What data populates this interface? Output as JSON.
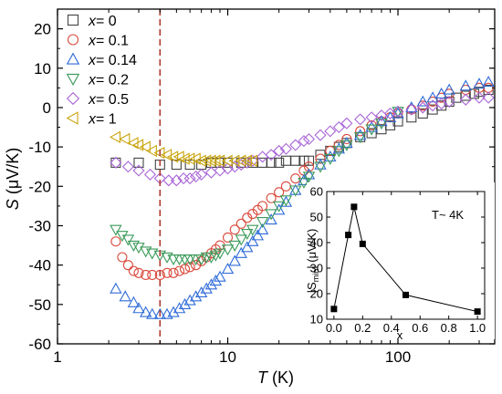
{
  "chart_data": [
    {
      "type": "scatter",
      "xlabel_var": "T",
      "xlabel_unit": " (K)",
      "ylabel_var": "S",
      "ylabel_unit": " (μV/K)",
      "xscale": "log",
      "xlim": [
        1,
        370
      ],
      "ylim": [
        -60,
        25
      ],
      "xticks": [
        1,
        10,
        100
      ],
      "xtick_labels": [
        "1",
        "10",
        "100"
      ],
      "yticks": [
        -60,
        -50,
        -40,
        -30,
        -20,
        -10,
        0,
        10,
        20
      ],
      "ytick_labels": [
        "-60",
        "-50",
        "-40",
        "-30",
        "-20",
        "-10",
        "0",
        "10",
        "20"
      ],
      "grid": false,
      "legend_position": "top-left",
      "reference_line": {
        "x": 4,
        "style": "dashed",
        "color": "#b03a2e"
      },
      "series": [
        {
          "legend_var": "x",
          "legend_value": "= 0",
          "marker": "square",
          "color": "#444444",
          "x": [
            2.2,
            3.0,
            4.0,
            5.0,
            6.0,
            7.0,
            8.0,
            9.0,
            10,
            12,
            14,
            16,
            18,
            20,
            22,
            25,
            28,
            30,
            35,
            40,
            45,
            50,
            60,
            70,
            80,
            90,
            100,
            120,
            140,
            160,
            180,
            200,
            220,
            250,
            280,
            300,
            340
          ],
          "y": [
            -14,
            -14,
            -14.5,
            -14.5,
            -14.5,
            -14.5,
            -14,
            -14,
            -14,
            -14,
            -14,
            -14,
            -14,
            -14,
            -13.5,
            -13.5,
            -13.5,
            -13.5,
            -12,
            -11,
            -10,
            -9,
            -7.5,
            -6.5,
            -5.5,
            -4.5,
            -3.5,
            -2.5,
            -1.5,
            -0.5,
            0.5,
            1.5,
            2.5,
            3.0,
            3.5,
            4.0,
            4.5
          ]
        },
        {
          "legend_var": "x",
          "legend_value": "= 0.1",
          "marker": "circle",
          "color": "#d94a3d",
          "x": [
            2.2,
            2.4,
            2.6,
            2.8,
            3.0,
            3.3,
            3.6,
            4.0,
            4.4,
            4.8,
            5.2,
            5.6,
            6.0,
            6.5,
            7.0,
            7.5,
            8.0,
            8.5,
            9.0,
            10,
            11,
            12,
            13,
            14,
            15,
            16,
            18,
            20,
            22,
            25,
            28,
            30,
            35,
            40,
            45,
            50,
            60,
            70,
            80,
            90,
            100,
            120,
            140,
            160,
            180,
            200,
            250,
            300,
            340
          ],
          "y": [
            -34,
            -38,
            -40,
            -41.5,
            -42,
            -42.5,
            -42.5,
            -42.5,
            -42,
            -42,
            -41.5,
            -41,
            -40.5,
            -40,
            -39,
            -38,
            -37,
            -36,
            -35,
            -33,
            -31,
            -29.5,
            -28,
            -27,
            -26,
            -25,
            -23,
            -21.5,
            -20,
            -18,
            -16,
            -15,
            -13,
            -11,
            -9.5,
            -8,
            -6,
            -4.5,
            -3.5,
            -2.5,
            -1.5,
            -0.5,
            0.5,
            1.5,
            2.5,
            3.5,
            4.5,
            5.0,
            5.0
          ]
        },
        {
          "legend_var": "x",
          "legend_value": "= 0.14",
          "marker": "triangle-up",
          "color": "#2e6bd8",
          "x": [
            2.2,
            2.5,
            2.8,
            3.0,
            3.3,
            3.6,
            4.0,
            4.4,
            4.8,
            5.2,
            5.6,
            6.0,
            6.5,
            7.0,
            7.5,
            8.0,
            8.5,
            9.0,
            10,
            11,
            12,
            13,
            14,
            15,
            16,
            18,
            20,
            22,
            25,
            28,
            30,
            35,
            40,
            45,
            50,
            60,
            70,
            80,
            90,
            100,
            120,
            140,
            160,
            180,
            200,
            250,
            300,
            340
          ],
          "y": [
            -46,
            -48,
            -49.5,
            -51,
            -52,
            -52.5,
            -52.5,
            -52.5,
            -52,
            -51,
            -50,
            -49,
            -48,
            -47,
            -46,
            -45,
            -44,
            -43,
            -41,
            -39,
            -37,
            -35.5,
            -34,
            -32.5,
            -31,
            -28.5,
            -26,
            -24,
            -21,
            -18.5,
            -17,
            -14.5,
            -12.5,
            -10.5,
            -9,
            -7,
            -5,
            -3.5,
            -2.5,
            -1.5,
            0,
            1.5,
            2.5,
            3.5,
            4.5,
            5.5,
            6.0,
            6.5
          ]
        },
        {
          "legend_var": "x",
          "legend_value": "= 0.2",
          "marker": "triangle-down",
          "color": "#3a9a5a",
          "x": [
            2.2,
            2.4,
            2.6,
            2.8,
            3.0,
            3.3,
            3.6,
            4.0,
            4.4,
            4.8,
            5.2,
            5.6,
            6.0,
            6.5,
            7.0,
            7.5,
            8.0,
            8.5,
            9.0,
            10,
            11,
            12,
            13,
            14,
            16,
            18,
            20,
            22,
            25,
            28,
            30,
            35,
            40,
            45,
            50,
            60,
            70,
            80,
            100
          ],
          "y": [
            -31,
            -32.5,
            -33.5,
            -35,
            -35.5,
            -36.5,
            -37,
            -37.5,
            -38,
            -38.5,
            -38.5,
            -38.5,
            -38.5,
            -38.5,
            -38.5,
            -38,
            -38,
            -37.5,
            -37,
            -36,
            -35,
            -33.5,
            -32,
            -31,
            -29,
            -27,
            -25,
            -23.5,
            -21,
            -19,
            -17.5,
            -15,
            -13,
            -11,
            -9.5,
            -7.5,
            -5.5,
            -4,
            -1
          ]
        },
        {
          "legend_var": "x",
          "legend_value": "= 0.5",
          "marker": "diamond",
          "color": "#a865d6",
          "x": [
            2.2,
            2.6,
            3.0,
            3.5,
            4.0,
            4.5,
            5.0,
            5.5,
            6.0,
            6.5,
            7.0,
            8.0,
            9.0,
            10,
            11,
            12,
            13,
            14,
            16,
            18,
            20,
            22,
            25,
            28,
            30,
            35,
            40,
            45,
            50,
            60,
            70,
            80,
            90,
            100,
            120,
            140,
            160,
            180,
            200,
            250,
            300,
            340
          ],
          "y": [
            -14,
            -15,
            -16,
            -17,
            -18,
            -18.5,
            -18.5,
            -18,
            -18,
            -17.5,
            -17,
            -16.5,
            -16,
            -15.5,
            -15,
            -14.5,
            -14,
            -13.5,
            -12.5,
            -12,
            -11,
            -10.5,
            -9.5,
            -8.5,
            -8,
            -7,
            -6,
            -5,
            -4,
            -3,
            -2.5,
            -2,
            -1.5,
            -1,
            -0.5,
            0,
            0.5,
            1,
            1.5,
            2,
            2.5,
            2.5
          ]
        },
        {
          "legend_var": "x",
          "legend_value": "= 1",
          "marker": "triangle-left",
          "color": "#c9a40c",
          "x": [
            2.2,
            2.5,
            2.8,
            3.0,
            3.3,
            3.6,
            4.0,
            4.4,
            4.8,
            5.2,
            5.6,
            6.0,
            6.5,
            7.0,
            7.5,
            8.0,
            8.5,
            9.0,
            10,
            11,
            12,
            13,
            14
          ],
          "y": [
            -7.5,
            -8,
            -9,
            -9.5,
            -10,
            -11,
            -11.5,
            -12,
            -12.5,
            -12.5,
            -13,
            -13,
            -13,
            -13.5,
            -13.5,
            -13.5,
            -13.5,
            -13.5,
            -13.5,
            -13.5,
            -13.5,
            -13.5,
            -13.5
          ]
        }
      ]
    },
    {
      "type": "line",
      "title": "T~ 4K",
      "xlabel": "x",
      "ylabel_pre": "|S",
      "ylabel_sub": "min",
      "ylabel_post": "| (μV/K)",
      "xlim": [
        -0.05,
        1.05
      ],
      "ylim": [
        10,
        60
      ],
      "xticks": [
        0.0,
        0.2,
        0.4,
        0.6,
        0.8,
        1.0
      ],
      "xtick_labels": [
        "0.0",
        "0.2",
        "0.4",
        "0.6",
        "0.8",
        "1.0"
      ],
      "yticks": [
        10,
        20,
        30,
        40,
        50,
        60
      ],
      "ytick_labels": [
        "10",
        "20",
        "30",
        "40",
        "50",
        "60"
      ],
      "marker": "square",
      "color": "#000000",
      "x": [
        0.0,
        0.1,
        0.14,
        0.2,
        0.5,
        1.0
      ],
      "y": [
        14,
        43,
        54,
        39.5,
        19.5,
        13
      ]
    }
  ]
}
